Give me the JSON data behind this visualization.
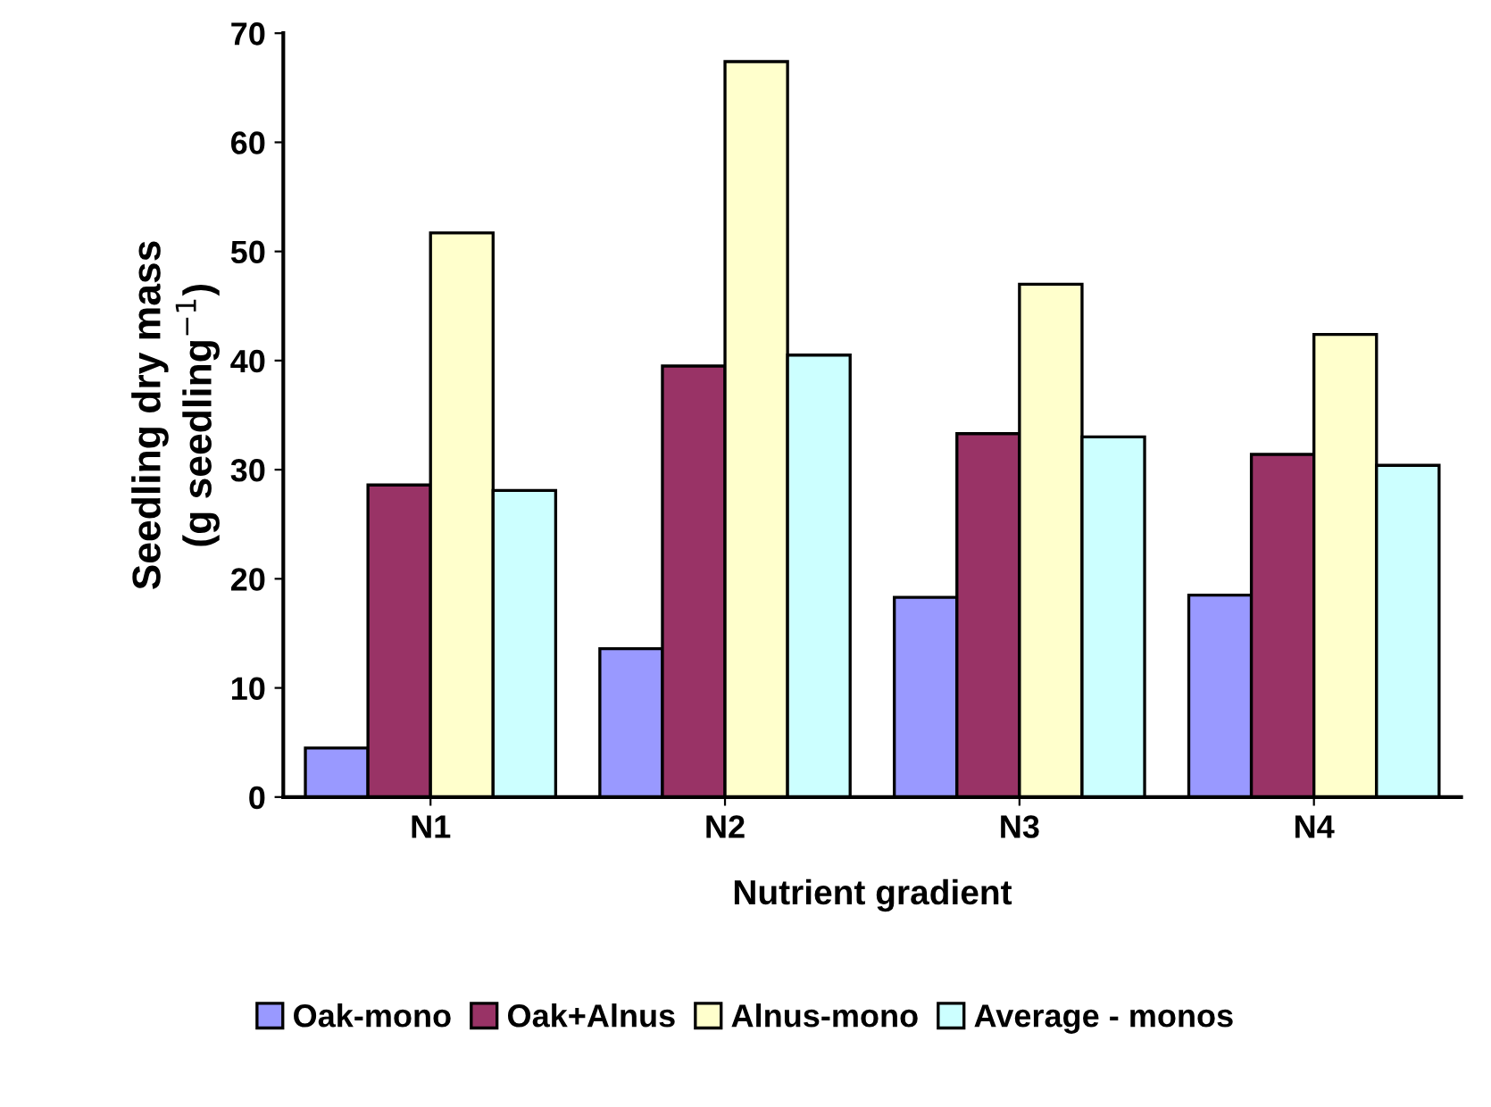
{
  "chart_data": {
    "type": "bar",
    "xlabel": "Nutrient gradient",
    "ylabel": "Seedling dry mass\n(g seedling$^{−1}$)",
    "categories": [
      "N1",
      "N2",
      "N3",
      "N4"
    ],
    "series": [
      {
        "name": "Oak-mono",
        "color": "#9999ff",
        "values": [
          4.5,
          13.6,
          18.3,
          18.5
        ]
      },
      {
        "name": "Oak+Alnus",
        "color": "#993366",
        "values": [
          28.6,
          39.5,
          33.3,
          31.4
        ]
      },
      {
        "name": "Alnus-mono",
        "color": "#ffffcc",
        "values": [
          51.7,
          67.4,
          47.0,
          42.4
        ]
      },
      {
        "name": "Average - monos",
        "color": "#ccffff",
        "values": [
          28.1,
          40.5,
          33.0,
          30.4
        ]
      }
    ],
    "ylim": [
      0,
      70
    ],
    "yticks": [
      0,
      10,
      20,
      30,
      40,
      50,
      60,
      70
    ],
    "grid": false,
    "legend": "bottom"
  }
}
